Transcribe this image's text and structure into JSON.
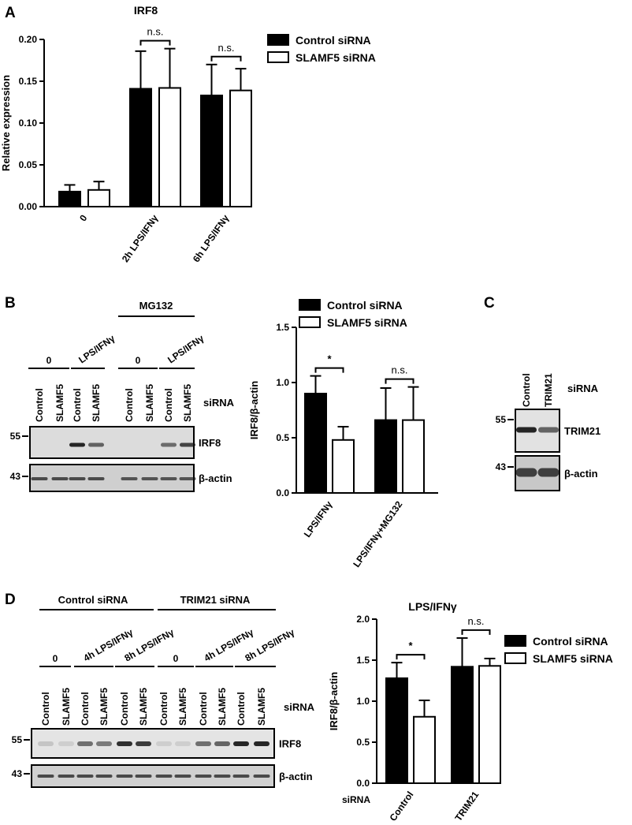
{
  "panel_letters": [
    "A",
    "B",
    "C",
    "D"
  ],
  "chart_data": [
    {
      "panel": "A",
      "type": "bar",
      "title": "IRF8",
      "ylabel": "Relative expression",
      "xlabel": "",
      "categories": [
        "0",
        "2h LPS/IFNγ",
        "6h LPS/IFNγ"
      ],
      "series": [
        {
          "name": "Control siRNA",
          "values": [
            0.018,
            0.141,
            0.133
          ],
          "errors": [
            0.008,
            0.045,
            0.037
          ],
          "color": "#000000"
        },
        {
          "name": "SLAMF5 siRNA",
          "values": [
            0.02,
            0.142,
            0.139
          ],
          "errors": [
            0.01,
            0.047,
            0.026
          ],
          "color": "#ffffff"
        }
      ],
      "ylim": [
        0,
        0.2
      ],
      "yticks": [
        "0.00",
        "0.05",
        "0.10",
        "0.15",
        "0.20"
      ],
      "annotations": [
        {
          "category": 1,
          "text": "n.s."
        },
        {
          "category": 2,
          "text": "n.s."
        }
      ],
      "legend_position": "top-right",
      "grid": false
    },
    {
      "panel": "B",
      "type": "bar",
      "title": "",
      "ylabel": "IRF8/β-actin",
      "xlabel": "",
      "categories": [
        "LPS/IFNγ",
        "LPS/IFNγ+MG132"
      ],
      "series": [
        {
          "name": "Control siRNA",
          "values": [
            0.9,
            0.66
          ],
          "errors": [
            0.16,
            0.29
          ],
          "color": "#000000"
        },
        {
          "name": "SLAMF5 siRNA",
          "values": [
            0.48,
            0.66
          ],
          "errors": [
            0.12,
            0.3
          ],
          "color": "#ffffff"
        }
      ],
      "ylim": [
        0,
        1.5
      ],
      "yticks": [
        "0.0",
        "0.5",
        "1.0",
        "1.5"
      ],
      "annotations": [
        {
          "category": 0,
          "text": "*"
        },
        {
          "category": 1,
          "text": "n.s."
        }
      ],
      "legend_position": "top",
      "grid": false
    },
    {
      "panel": "D",
      "type": "bar",
      "title": "LPS/IFNγ",
      "ylabel": "IRF8/β-actin",
      "xlabel": "siRNA",
      "categories": [
        "Control",
        "TRIM21"
      ],
      "series": [
        {
          "name": "Control siRNA",
          "values": [
            1.28,
            1.42
          ],
          "errors": [
            0.19,
            0.35
          ],
          "color": "#000000"
        },
        {
          "name": "SLAMF5 siRNA",
          "values": [
            0.81,
            1.43
          ],
          "errors": [
            0.2,
            0.09
          ],
          "color": "#ffffff"
        }
      ],
      "ylim": [
        0,
        2.0
      ],
      "yticks": [
        "0.0",
        "0.5",
        "1.0",
        "1.5",
        "2.0"
      ],
      "annotations": [
        {
          "category": 0,
          "text": "*"
        },
        {
          "category": 1,
          "text": "n.s."
        }
      ],
      "legend_position": "right",
      "grid": false
    }
  ],
  "blot_b": {
    "header": "MG132",
    "groups": [
      "0",
      "LPS/IFNγ",
      "0",
      "LPS/IFNγ"
    ],
    "lanes": [
      "Control",
      "SLAMF5",
      "Control",
      "SLAMF5",
      "Control",
      "SLAMF5",
      "Control",
      "SLAMF5"
    ],
    "lane_axis_label": "siRNA",
    "markers": [
      "55",
      "43"
    ],
    "bands": [
      "IRF8",
      "β-actin"
    ]
  },
  "blot_c": {
    "lanes": [
      "Control",
      "TRIM21"
    ],
    "lane_axis_label": "siRNA",
    "markers": [
      "55",
      "43"
    ],
    "bands": [
      "TRIM21",
      "β-actin"
    ]
  },
  "blot_d": {
    "headers": [
      "Control siRNA",
      "TRIM21 siRNA"
    ],
    "groups": [
      "0",
      "4h LPS/IFNγ",
      "8h LPS/IFNγ",
      "0",
      "4h LPS/IFNγ",
      "8h LPS/IFNγ"
    ],
    "lanes": [
      "Control",
      "SLAMF5",
      "Control",
      "SLAMF5",
      "Control",
      "SLAMF5",
      "Control",
      "SLAMF5",
      "Control",
      "SLAMF5",
      "Control",
      "SLAMF5"
    ],
    "lane_axis_label": "siRNA",
    "markers": [
      "55",
      "43"
    ],
    "bands": [
      "IRF8",
      "β-actin"
    ]
  }
}
